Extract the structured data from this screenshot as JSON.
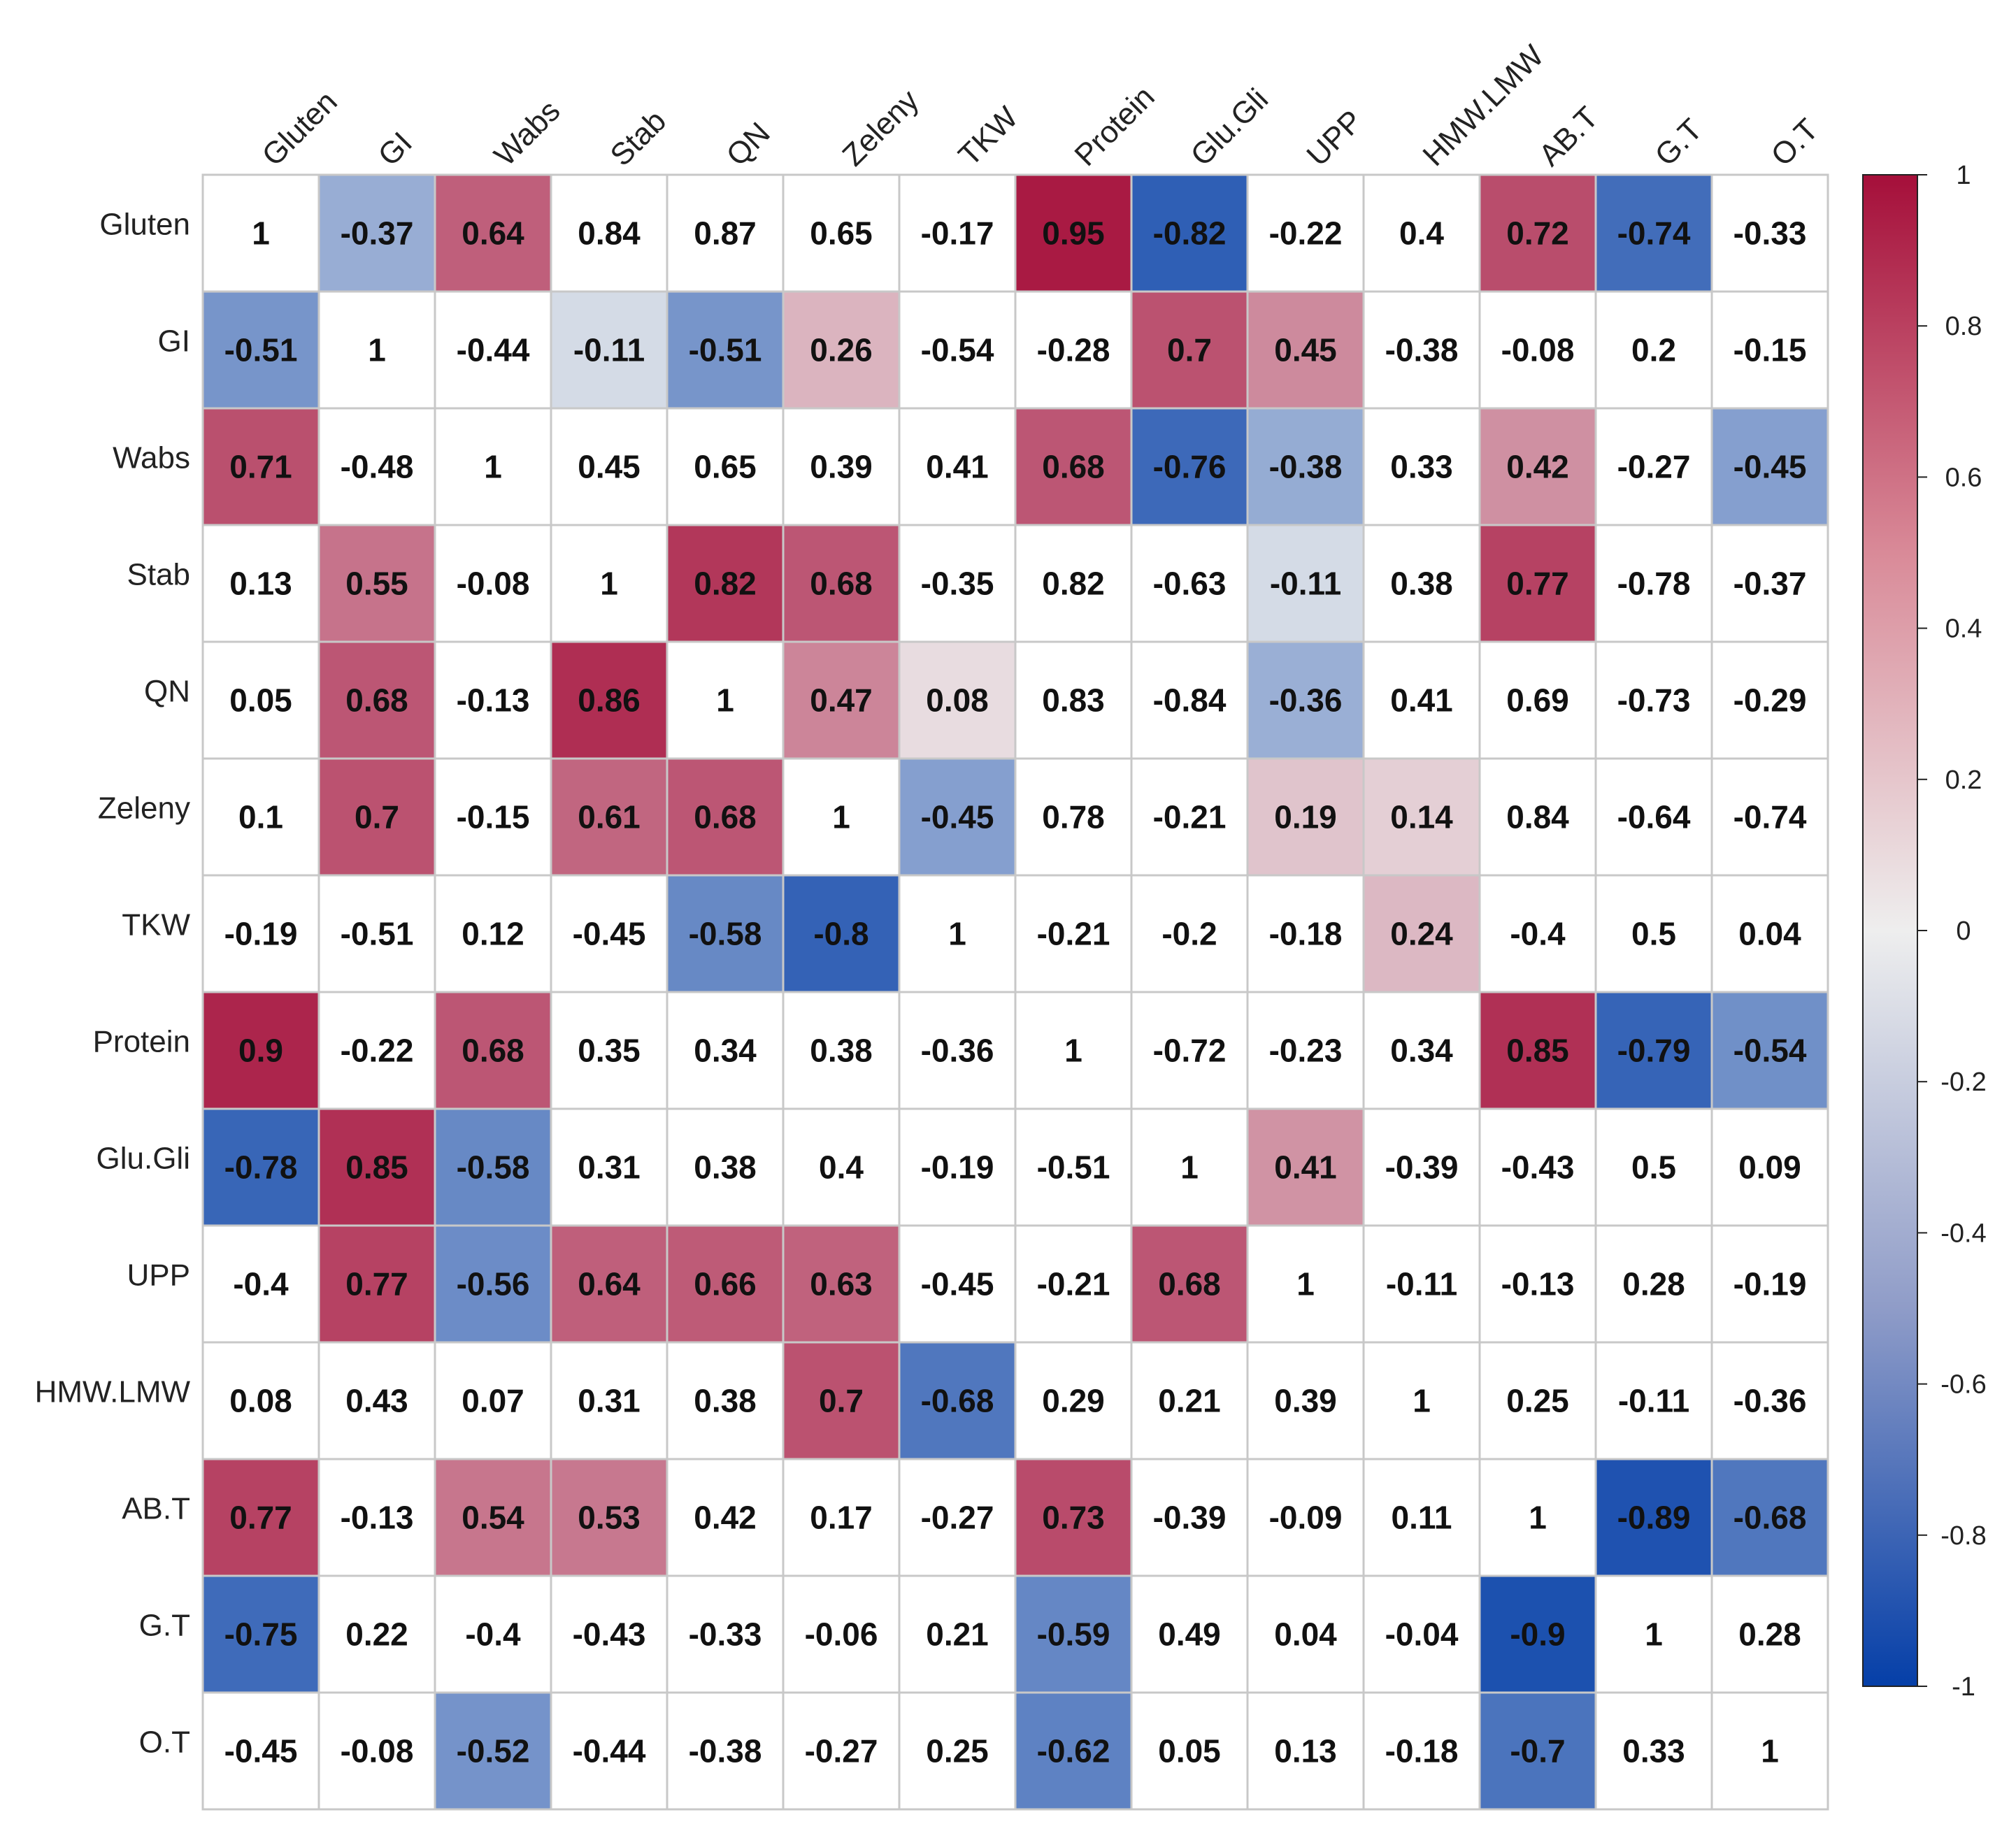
{
  "chart_data": {
    "type": "heatmap",
    "title": "",
    "variables": [
      "Gluten",
      "GI",
      "Wabs",
      "Stab",
      "QN",
      "Zeleny",
      "TKW",
      "Protein",
      "Glu.Gli",
      "UPP",
      "HMW.LMW",
      "AB.T",
      "G.T",
      "O.T"
    ],
    "matrix": [
      [
        1,
        -0.37,
        0.64,
        0.84,
        0.87,
        0.65,
        -0.17,
        0.95,
        -0.82,
        -0.22,
        0.4,
        0.72,
        -0.74,
        -0.33
      ],
      [
        -0.51,
        1,
        -0.44,
        -0.11,
        -0.51,
        0.26,
        -0.54,
        -0.28,
        0.7,
        0.45,
        -0.38,
        -0.08,
        0.2,
        -0.15
      ],
      [
        0.71,
        -0.48,
        1,
        0.45,
        0.65,
        0.39,
        0.41,
        0.68,
        -0.76,
        -0.38,
        0.33,
        0.42,
        -0.27,
        -0.45
      ],
      [
        0.13,
        0.55,
        -0.08,
        1,
        0.82,
        0.68,
        -0.35,
        0.82,
        -0.63,
        -0.11,
        0.38,
        0.77,
        -0.78,
        -0.37
      ],
      [
        0.05,
        0.68,
        -0.13,
        0.86,
        1,
        0.47,
        0.08,
        0.83,
        -0.84,
        -0.36,
        0.41,
        0.69,
        -0.73,
        -0.29
      ],
      [
        0.1,
        0.7,
        -0.15,
        0.61,
        0.68,
        1,
        -0.45,
        0.78,
        -0.21,
        0.19,
        0.14,
        0.84,
        -0.64,
        -0.74
      ],
      [
        -0.19,
        -0.51,
        0.12,
        -0.45,
        -0.58,
        -0.8,
        1,
        -0.21,
        -0.2,
        -0.18,
        0.24,
        -0.4,
        0.5,
        0.04
      ],
      [
        0.9,
        -0.22,
        0.68,
        0.35,
        0.34,
        0.38,
        -0.36,
        1,
        -0.72,
        -0.23,
        0.34,
        0.85,
        -0.79,
        -0.54
      ],
      [
        -0.78,
        0.85,
        -0.58,
        0.31,
        0.38,
        0.4,
        -0.19,
        -0.51,
        1,
        0.41,
        -0.39,
        -0.43,
        0.5,
        0.09
      ],
      [
        -0.4,
        0.77,
        -0.56,
        0.64,
        0.66,
        0.63,
        -0.45,
        -0.21,
        0.68,
        1,
        -0.11,
        -0.13,
        0.28,
        -0.19
      ],
      [
        0.08,
        0.43,
        0.07,
        0.31,
        0.38,
        0.7,
        -0.68,
        0.29,
        0.21,
        0.39,
        1,
        0.25,
        -0.11,
        -0.36
      ],
      [
        0.77,
        -0.13,
        0.54,
        0.53,
        0.42,
        0.17,
        -0.27,
        0.73,
        -0.39,
        -0.09,
        0.11,
        1,
        -0.89,
        -0.68
      ],
      [
        -0.75,
        0.22,
        -0.4,
        -0.43,
        -0.33,
        -0.06,
        0.21,
        -0.59,
        0.49,
        0.04,
        -0.04,
        -0.9,
        1,
        0.28
      ],
      [
        -0.45,
        -0.08,
        -0.52,
        -0.44,
        -0.38,
        -0.27,
        0.25,
        -0.62,
        0.05,
        0.13,
        -0.18,
        -0.7,
        0.33,
        1
      ]
    ],
    "colored": [
      [
        false,
        true,
        true,
        false,
        false,
        false,
        false,
        true,
        true,
        false,
        false,
        true,
        true,
        false
      ],
      [
        true,
        false,
        false,
        true,
        true,
        true,
        false,
        false,
        true,
        true,
        false,
        false,
        false,
        false
      ],
      [
        true,
        false,
        false,
        false,
        false,
        false,
        false,
        true,
        true,
        true,
        false,
        true,
        false,
        true
      ],
      [
        false,
        true,
        false,
        false,
        true,
        true,
        false,
        false,
        false,
        true,
        false,
        true,
        false,
        false
      ],
      [
        false,
        true,
        false,
        true,
        false,
        true,
        true,
        false,
        false,
        true,
        false,
        false,
        false,
        false
      ],
      [
        false,
        true,
        false,
        true,
        true,
        false,
        true,
        false,
        false,
        true,
        true,
        false,
        false,
        false
      ],
      [
        false,
        false,
        false,
        false,
        true,
        true,
        false,
        false,
        false,
        false,
        true,
        false,
        false,
        false
      ],
      [
        true,
        false,
        true,
        false,
        false,
        false,
        false,
        false,
        false,
        false,
        false,
        true,
        true,
        true
      ],
      [
        true,
        true,
        true,
        false,
        false,
        false,
        false,
        false,
        false,
        true,
        false,
        false,
        false,
        false
      ],
      [
        false,
        true,
        true,
        true,
        true,
        true,
        false,
        false,
        true,
        false,
        false,
        false,
        false,
        false
      ],
      [
        false,
        false,
        false,
        false,
        false,
        true,
        true,
        false,
        false,
        false,
        false,
        false,
        false,
        false
      ],
      [
        true,
        false,
        true,
        true,
        false,
        false,
        false,
        true,
        false,
        false,
        false,
        false,
        true,
        true
      ],
      [
        true,
        false,
        false,
        false,
        false,
        false,
        false,
        true,
        false,
        false,
        false,
        true,
        false,
        false
      ],
      [
        false,
        false,
        true,
        false,
        false,
        false,
        false,
        true,
        false,
        false,
        false,
        true,
        false,
        false
      ]
    ],
    "colorbar": {
      "ticks": [
        "1",
        "0.8",
        "0.6",
        "0.4",
        "0.2",
        "0",
        "-0.2",
        "-0.4",
        "-0.6",
        "-0.8",
        "-1"
      ],
      "range": [
        -1,
        1
      ],
      "low_color": "#053fa8",
      "mid_color": "#eeeeee",
      "high_color": "#a50f3a"
    }
  }
}
